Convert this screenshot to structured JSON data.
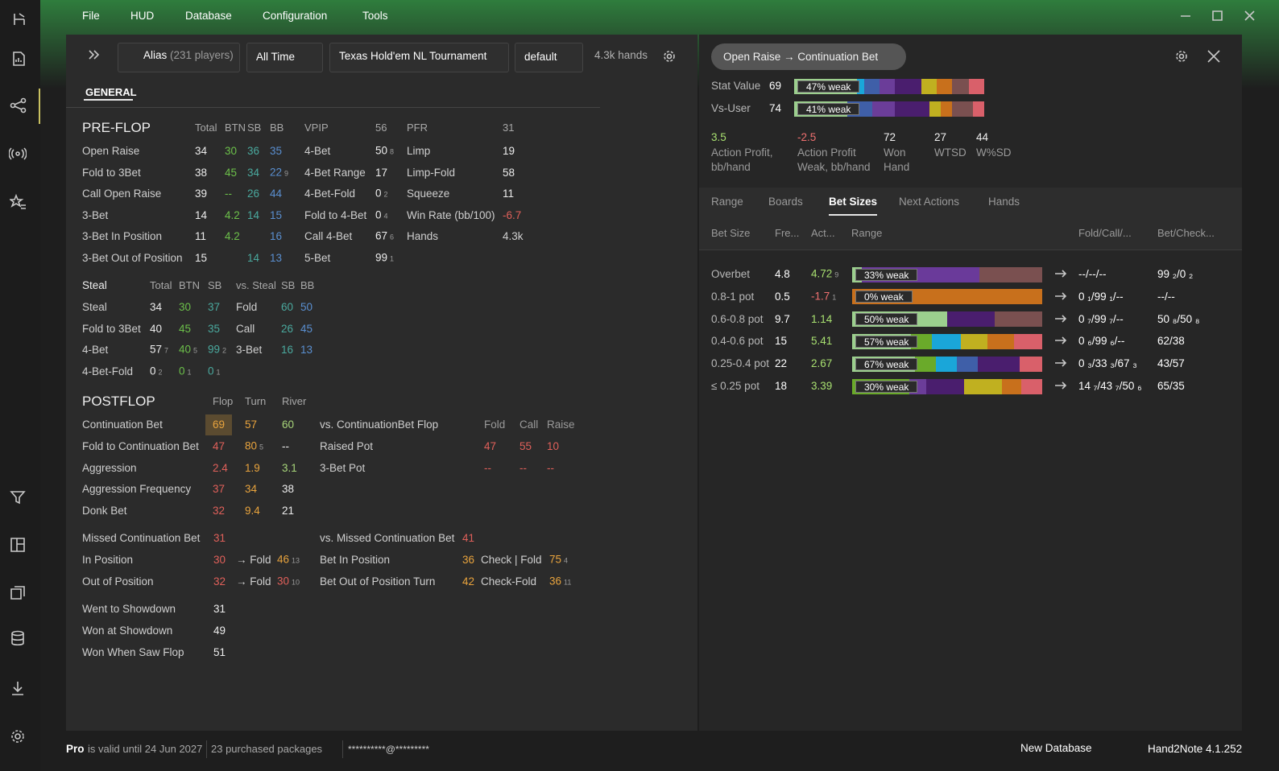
{
  "menu": [
    "File",
    "HUD",
    "Database",
    "Configuration",
    "Tools"
  ],
  "toolbar": {
    "alias": "Alias",
    "alias_count": "(231 players)",
    "period": "All Time",
    "game": "Texas Hold'em NL Tournament",
    "profile": "default",
    "hands": "4.3k hands"
  },
  "tab": "GENERAL",
  "preflop": {
    "header": [
      "PRE-FLOP",
      "Total",
      "BTN",
      "SB",
      "BB",
      "VPIP",
      "56",
      "PFR",
      "31"
    ],
    "rows": [
      [
        "Open Raise",
        "34",
        {
          "text": "30",
          "color": "#6cc04a"
        },
        {
          "text": "36",
          "color": "#4aa99e"
        },
        {
          "text": "35",
          "color": "#5a8fd0"
        },
        "4-Bet",
        {
          "text": "50",
          "sub": "8"
        },
        "Limp",
        "19"
      ],
      [
        "Fold to 3Bet",
        "38",
        {
          "text": "45",
          "color": "#6cc04a"
        },
        {
          "text": "34",
          "color": "#4aa99e"
        },
        {
          "text": "22",
          "sub": "9",
          "color": "#5a8fd0"
        },
        "4-Bet Range",
        "17",
        "Limp-Fold",
        "58"
      ],
      [
        "Call Open Raise",
        "39",
        {
          "text": "--",
          "color": "#6cc04a"
        },
        {
          "text": "26",
          "color": "#4aa99e"
        },
        {
          "text": "44",
          "color": "#5a8fd0"
        },
        "4-Bet-Fold",
        {
          "text": "0",
          "sub": "2"
        },
        "Squeeze",
        "11"
      ],
      [
        "3-Bet",
        "14",
        {
          "text": "4.2",
          "color": "#6cc04a"
        },
        {
          "text": "14",
          "color": "#4aa99e"
        },
        {
          "text": "15",
          "color": "#5a8fd0"
        },
        "Fold to 4-Bet",
        {
          "text": "0",
          "sub": "4"
        },
        "Win Rate (bb/100)",
        {
          "text": "-6.7",
          "color": "#e0605a"
        }
      ],
      [
        "3-Bet In Position",
        "11",
        {
          "text": "4.2",
          "color": "#6cc04a"
        },
        null,
        {
          "text": "16",
          "color": "#5a8fd0"
        },
        "Call 4-Bet",
        {
          "text": "67",
          "sub": "6"
        },
        "Hands",
        "4.3k"
      ],
      [
        "3-Bet Out of Position",
        "15",
        null,
        {
          "text": "14",
          "color": "#4aa99e"
        },
        {
          "text": "13",
          "color": "#5a8fd0"
        },
        "5-Bet",
        {
          "text": "99",
          "sub": "1"
        },
        null,
        null
      ]
    ]
  },
  "steal": {
    "header": [
      "Steal",
      "Total",
      "BTN",
      "SB",
      "vs. Steal",
      "SB",
      "BB"
    ],
    "rows": [
      [
        "Steal",
        "34",
        {
          "text": "30",
          "color": "#6cc04a"
        },
        {
          "text": "37",
          "color": "#4aa99e"
        },
        "Fold",
        {
          "text": "60",
          "color": "#4aa99e"
        },
        {
          "text": "50",
          "color": "#5a8fd0"
        }
      ],
      [
        "Fold to 3Bet",
        "40",
        {
          "text": "45",
          "color": "#6cc04a"
        },
        {
          "text": "35",
          "color": "#4aa99e"
        },
        "Call",
        {
          "text": "26",
          "color": "#4aa99e"
        },
        {
          "text": "45",
          "color": "#5a8fd0"
        }
      ],
      [
        "4-Bet",
        {
          "text": "57",
          "sub": "7"
        },
        {
          "text": "40",
          "sub": "5",
          "color": "#6cc04a"
        },
        {
          "text": "99",
          "sub": "2",
          "color": "#4aa99e"
        },
        "3-Bet",
        {
          "text": "16",
          "color": "#4aa99e"
        },
        {
          "text": "13",
          "color": "#5a8fd0"
        }
      ],
      [
        "4-Bet-Fold",
        {
          "text": "0",
          "sub": "2"
        },
        {
          "text": "0",
          "sub": "1",
          "color": "#6cc04a"
        },
        {
          "text": "0",
          "sub": "1",
          "color": "#4aa99e"
        },
        null,
        null,
        null
      ]
    ]
  },
  "postflop": {
    "header": [
      "POSTFLOP",
      "Flop",
      "Turn",
      "River"
    ],
    "rows": [
      [
        "Continuation Bet",
        {
          "text": "69",
          "color": "#e8a33d",
          "bg": "#5b4b30"
        },
        {
          "text": "57",
          "color": "#e8a33d"
        },
        {
          "text": "60",
          "color": "#a8d67a"
        },
        "vs. ContinuationBet Flop",
        {
          "text": "Fold",
          "color": "#9a9a9a"
        },
        {
          "text": "Call",
          "color": "#9a9a9a"
        },
        {
          "text": "Raise",
          "color": "#9a9a9a"
        }
      ],
      [
        "Fold to Continuation Bet",
        {
          "text": "47",
          "color": "#e0605a"
        },
        {
          "text": "80",
          "sub": "5",
          "color": "#e8a33d"
        },
        "--",
        "Raised Pot",
        {
          "text": "47",
          "color": "#e0605a"
        },
        {
          "text": "55",
          "color": "#e0605a"
        },
        {
          "text": "10",
          "color": "#e0605a"
        }
      ],
      [
        "Aggression",
        {
          "text": "2.4",
          "color": "#e0605a"
        },
        {
          "text": "1.9",
          "color": "#e8a33d"
        },
        {
          "text": "3.1",
          "color": "#a8d67a"
        },
        "3-Bet Pot",
        {
          "text": "--",
          "color": "#e0605a"
        },
        {
          "text": "--",
          "color": "#e0605a"
        },
        {
          "text": "--",
          "color": "#e0605a"
        }
      ],
      [
        "Aggression Frequency",
        {
          "text": "37",
          "color": "#e0605a"
        },
        {
          "text": "34",
          "color": "#e8a33d"
        },
        "38"
      ],
      [
        "Donk Bet",
        {
          "text": "32",
          "color": "#e0605a"
        },
        {
          "text": "9.4",
          "color": "#e8a33d"
        },
        "21"
      ]
    ]
  },
  "missed": {
    "rows": [
      [
        "Missed Continuation Bet",
        {
          "text": "31",
          "color": "#e0605a"
        },
        null,
        null,
        "vs. Missed Continuation Bet",
        {
          "text": "41",
          "color": "#e0605a"
        }
      ],
      [
        "In Position",
        {
          "text": "30",
          "color": "#e0605a"
        },
        "→ Fold",
        {
          "text": "46",
          "sub": "13",
          "color": "#e8a33d"
        },
        "Bet In Position",
        {
          "text": "36",
          "color": "#e8a33d"
        },
        "Check | Fold",
        {
          "text": "75",
          "sub": "4",
          "color": "#e8a33d"
        }
      ],
      [
        "Out of Position",
        {
          "text": "32",
          "color": "#e0605a"
        },
        "→ Fold",
        {
          "text": "30",
          "sub": "10",
          "color": "#e0605a"
        },
        "Bet Out of Position Turn",
        {
          "text": "42",
          "color": "#e8a33d"
        },
        "Check-Fold",
        {
          "text": "36",
          "sub": "11",
          "color": "#e8a33d"
        }
      ]
    ]
  },
  "showdown": {
    "rows": [
      [
        "Went to Showdown",
        "31"
      ],
      [
        "Won at Showdown",
        "49"
      ],
      [
        "Won When Saw Flop",
        "51"
      ]
    ]
  },
  "detail": {
    "title": "Open Raise → Continuation Bet",
    "stats": [
      {
        "label": "Stat Value",
        "value": "69",
        "bar_label": "47% weak",
        "segments": [
          {
            "color": "#9ccf8e",
            "share": 33
          },
          {
            "color": "#1aa6d9",
            "share": 4
          },
          {
            "color": "#3f5fa8",
            "share": 8
          },
          {
            "color": "#6b3d99",
            "share": 8
          },
          {
            "color": "#4a1e6e",
            "share": 14
          },
          {
            "color": "#c0b020",
            "share": 8
          },
          {
            "color": "#c8701c",
            "share": 8
          },
          {
            "color": "#7a5050",
            "share": 9
          },
          {
            "color": "#d9606a",
            "share": 8
          }
        ]
      },
      {
        "label": "Vs-User",
        "value": "74",
        "bar_label": "41% weak",
        "segments": [
          {
            "color": "#9ccf8e",
            "share": 28
          },
          {
            "color": "#3f5fa8",
            "share": 13
          },
          {
            "color": "#6b3d99",
            "share": 12
          },
          {
            "color": "#4a1e6e",
            "share": 18
          },
          {
            "color": "#c0b020",
            "share": 6
          },
          {
            "color": "#c8701c",
            "share": 6
          },
          {
            "color": "#7a5050",
            "share": 11
          },
          {
            "color": "#d9606a",
            "share": 6
          }
        ]
      }
    ],
    "summary": [
      {
        "value": "3.5",
        "color": "#a8e070",
        "label": [
          "Action Profit,",
          "bb/hand"
        ]
      },
      {
        "value": "-2.5",
        "color": "#f07070",
        "label": [
          "Action Profit",
          "Weak, bb/hand"
        ]
      },
      {
        "value": "72",
        "label": [
          "Won",
          "Hand"
        ]
      },
      {
        "value": "27",
        "label": [
          "WTSD"
        ]
      },
      {
        "value": "44",
        "label": [
          "W%SD"
        ]
      }
    ],
    "tabs": [
      "Range",
      "Boards",
      "Bet Sizes",
      "Next Actions",
      "Hands"
    ],
    "active_tab": 2,
    "columns": [
      "Bet Size",
      "Fre...",
      "Act...",
      "Range",
      "Fold/Call/...",
      "Bet/Check..."
    ],
    "rows": [
      {
        "size": "Overbet",
        "freq": "4.8",
        "act": {
          "text": "4.72",
          "sub": "9",
          "color": "#a8e070"
        },
        "bar_label": "33% weak",
        "segments": [
          {
            "color": "#9ccf8e",
            "share": 5
          },
          {
            "color": "#6a3a9a",
            "share": 62
          },
          {
            "color": "#7a5050",
            "share": 33
          }
        ],
        "fold_call": "--/--/--",
        "bet_check": "99 ₂/0 ₂"
      },
      {
        "size": "0.8-1 pot",
        "freq": "0.5",
        "act": {
          "text": "-1.7",
          "sub": "1",
          "color": "#f07070"
        },
        "bar_label": "0% weak",
        "segments": [
          {
            "color": "#c8701c",
            "share": 100
          }
        ],
        "fold_call": "0 ₁/99 ₁/--",
        "bet_check": "--/--"
      },
      {
        "size": "0.6-0.8 pot",
        "freq": "9.7",
        "act": {
          "text": "1.14",
          "color": "#a8e070"
        },
        "bar_label": "50% weak",
        "segments": [
          {
            "color": "#9ccf8e",
            "share": 50
          },
          {
            "color": "#4a1e6e",
            "share": 25
          },
          {
            "color": "#7a5050",
            "share": 25
          }
        ],
        "fold_call": "0 ₇/99 ₇/--",
        "bet_check": "50 ₈/50 ₈"
      },
      {
        "size": "0.4-0.6 pot",
        "freq": "15",
        "act": {
          "text": "5.41",
          "color": "#a8e070"
        },
        "bar_label": "57% weak",
        "segments": [
          {
            "color": "#9ccf8e",
            "share": 31
          },
          {
            "color": "#6aaa2a",
            "share": 11
          },
          {
            "color": "#1aa6d9",
            "share": 15
          },
          {
            "color": "#c0b020",
            "share": 14
          },
          {
            "color": "#c8701c",
            "share": 14
          },
          {
            "color": "#d9606a",
            "share": 15
          }
        ],
        "fold_call": "0 ₆/99 ₆/--",
        "bet_check": "62/38"
      },
      {
        "size": "0.25-0.4 pot",
        "freq": "22",
        "act": {
          "text": "2.67",
          "color": "#a8e070"
        },
        "bar_label": "67% weak",
        "segments": [
          {
            "color": "#9ccf8e",
            "share": 33
          },
          {
            "color": "#6aaa2a",
            "share": 11
          },
          {
            "color": "#1aa6d9",
            "share": 11
          },
          {
            "color": "#3f5fa8",
            "share": 11
          },
          {
            "color": "#4a1e6e",
            "share": 22
          },
          {
            "color": "#d9606a",
            "share": 12
          }
        ],
        "fold_call": "0 ₃/33 ₃/67 ₃",
        "bet_check": "43/57"
      },
      {
        "size": "≤ 0.25 pot",
        "freq": "18",
        "act": {
          "text": "3.39",
          "color": "#a8e070"
        },
        "bar_label": "30% weak",
        "segments": [
          {
            "color": "#6aaa2a",
            "share": 30
          },
          {
            "color": "#6b3d99",
            "share": 9
          },
          {
            "color": "#4a1e6e",
            "share": 20
          },
          {
            "color": "#c0b020",
            "share": 20
          },
          {
            "color": "#c8701c",
            "share": 10
          },
          {
            "color": "#d9606a",
            "share": 11
          }
        ],
        "fold_call": "14 ₇/43 ₇/50 ₆",
        "bet_check": "65/35"
      }
    ]
  },
  "footer": {
    "plan": "Pro",
    "valid": "is valid until 24 Jun 2027",
    "packages": "23 purchased packages",
    "account": "**********@*********",
    "database": "New Database",
    "version": "Hand2Note 4.1.252"
  }
}
